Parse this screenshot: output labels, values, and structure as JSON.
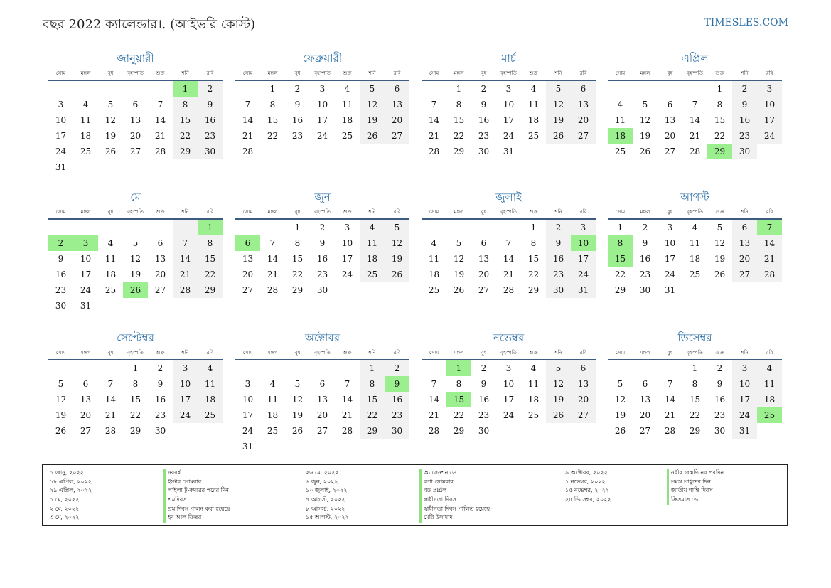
{
  "header": {
    "title": "বছর 2022 ক্যালেন্ডার।. (আইভরি কোস্ট)",
    "site": "TIMESLES.COM"
  },
  "weekdays": [
    "সোম",
    "মঙ্গল",
    "বুধ",
    "বৃহস্পতি",
    "শুক্র",
    "শনি",
    "রবি"
  ],
  "months": [
    {
      "name": "জানুয়ারী",
      "offset": 5,
      "days": 31,
      "holidays": [
        1
      ]
    },
    {
      "name": "ফেব্রুয়ারী",
      "offset": 1,
      "days": 28,
      "holidays": []
    },
    {
      "name": "মার্চ",
      "offset": 1,
      "days": 31,
      "holidays": []
    },
    {
      "name": "এপ্রিল",
      "offset": 4,
      "days": 30,
      "holidays": [
        18,
        29
      ]
    },
    {
      "name": "মে",
      "offset": 6,
      "days": 31,
      "holidays": [
        1,
        2,
        3,
        26
      ]
    },
    {
      "name": "জুন",
      "offset": 2,
      "days": 30,
      "holidays": [
        6
      ]
    },
    {
      "name": "জুলাই",
      "offset": 4,
      "days": 31,
      "holidays": [
        10
      ]
    },
    {
      "name": "আগস্ট",
      "offset": 0,
      "days": 31,
      "holidays": [
        7,
        8,
        15
      ]
    },
    {
      "name": "সেপ্টেম্বর",
      "offset": 3,
      "days": 30,
      "holidays": []
    },
    {
      "name": "অক্টোবর",
      "offset": 5,
      "days": 31,
      "holidays": [
        9
      ]
    },
    {
      "name": "নভেম্বর",
      "offset": 1,
      "days": 30,
      "holidays": [
        1,
        15
      ]
    },
    {
      "name": "ডিসেম্বর",
      "offset": 3,
      "days": 31,
      "holidays": [
        25
      ]
    }
  ],
  "legend": {
    "col1_dates": [
      "১ জানু, ২০২২",
      "১৮ এপ্রিল, ২০২২",
      "২৯ এপ্রিল, ২০২২",
      "১ মে, ২০২২",
      "২ মে, ২০২২",
      "৩ মে, ২০২২"
    ],
    "col1_names": [
      "নববর্ষ",
      "ইস্টার সোমবার",
      "লাইলা টু-কদরের পরের দিন",
      "শ্রমদিবস",
      "শ্রম দিবস পালন করা হয়েছে",
      "ইদ আল ফিতর"
    ],
    "col2_dates": [
      "২৬ মে, ২০২২",
      "৬ জুন, ২০২২",
      "১০ জুলাই, ২০২২",
      "৭ আগস্ট, ২০২২",
      "৮ আগস্ট, ২০২২",
      "১৫ আগস্ট, ২০২২"
    ],
    "col2_names": [
      "অ্যাসেনশন ডে",
      "কণা সোমবার",
      "বড় Eidল",
      "স্বাধীনতা দিবস",
      "স্বাধীনতা দিবস পালিত হয়েছে",
      "মেরি উদ্যমাদ"
    ],
    "col3_dates": [
      "৯ অক্টোবর, ২০২২",
      "১ নভেম্বর, ২০২২",
      "১৫ নভেম্বর, ২০২২",
      "২৫ ডিসেম্বর, ২০২২"
    ],
    "col3_names": [
      "নবীর জন্মদিনের পরদিন",
      "সমস্ত সাধুদের দিন",
      "জাতীয় শান্তি দিবস",
      "ক্রিসমাস ডে"
    ]
  }
}
